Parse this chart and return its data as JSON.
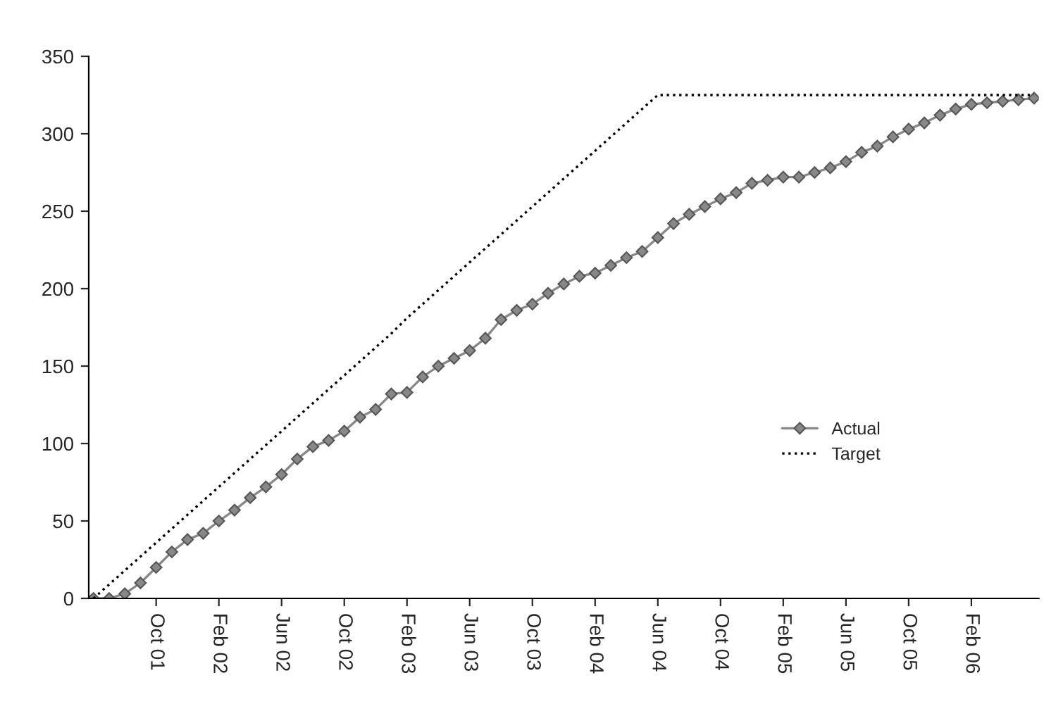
{
  "chart_data": {
    "type": "line",
    "categories": [
      null,
      null,
      null,
      null,
      "Oct 01",
      null,
      null,
      null,
      "Feb 02",
      null,
      null,
      null,
      "Jun 02",
      null,
      null,
      null,
      "Oct 02",
      null,
      null,
      null,
      "Feb 03",
      null,
      null,
      null,
      "Jun 03",
      null,
      null,
      null,
      "Oct 03",
      null,
      null,
      null,
      "Feb 04",
      null,
      null,
      null,
      "Jun 04",
      null,
      null,
      null,
      "Oct 04",
      null,
      null,
      null,
      "Feb 05",
      null,
      null,
      null,
      "Jun 05",
      null,
      null,
      null,
      "Oct 05",
      null,
      null,
      null,
      "Feb 06",
      null,
      null,
      null,
      null
    ],
    "series": [
      {
        "name": "Actual",
        "color": "#888888",
        "marker": "diamond",
        "line_style": "solid",
        "values": [
          0,
          0,
          3,
          10,
          20,
          30,
          38,
          42,
          50,
          57,
          65,
          72,
          80,
          90,
          98,
          102,
          108,
          117,
          122,
          132,
          133,
          143,
          150,
          155,
          160,
          168,
          180,
          186,
          190,
          197,
          203,
          208,
          210,
          215,
          220,
          224,
          233,
          242,
          248,
          253,
          258,
          262,
          268,
          270,
          272,
          272,
          275,
          278,
          282,
          288,
          292,
          298,
          303,
          307,
          312,
          316,
          319,
          320,
          321,
          322,
          323
        ]
      },
      {
        "name": "Target",
        "color": "#000000",
        "marker": "none",
        "line_style": "dotted",
        "values": [
          0,
          9,
          18,
          27,
          36,
          45,
          54,
          63,
          72,
          81,
          90,
          99,
          108,
          117,
          126,
          135,
          144,
          153,
          162,
          171,
          181,
          190,
          199,
          208,
          217,
          226,
          235,
          244,
          253,
          262,
          271,
          280,
          289,
          298,
          307,
          316,
          325,
          325,
          325,
          325,
          325,
          325,
          325,
          325,
          325,
          325,
          325,
          325,
          325,
          325,
          325,
          325,
          325,
          325,
          325,
          325,
          325,
          325,
          325,
          325,
          325
        ]
      }
    ],
    "ylim": [
      0,
      350
    ],
    "yticks": [
      0,
      50,
      100,
      150,
      200,
      250,
      300,
      350
    ],
    "grid": false,
    "legend": "bottom right"
  }
}
